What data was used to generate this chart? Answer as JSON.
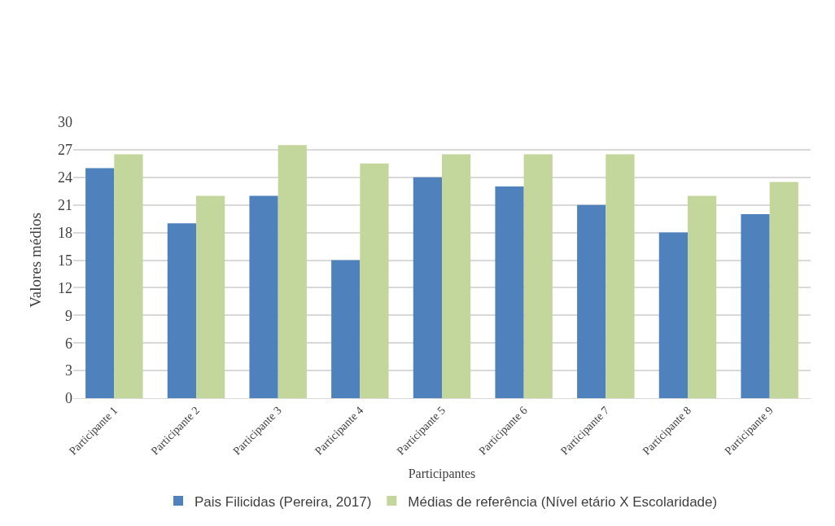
{
  "chart_data": {
    "type": "bar",
    "xlabel": "Participantes",
    "ylabel": "Valores médios",
    "categories": [
      "Participante 1",
      "Participante 2",
      "Participante 3",
      "Participante 4",
      "Participante 5",
      "Participante 6",
      "Participante 7",
      "Participante 8",
      "Participante 9"
    ],
    "series": [
      {
        "name": "Pais Filicidas (Pereira, 2017)",
        "color": "#4f81bd",
        "values": [
          25,
          19,
          22,
          15,
          24,
          23,
          21,
          18,
          20
        ]
      },
      {
        "name": "Médias de referência (Nível etário X Escolaridade)",
        "color": "#c3d69b",
        "values": [
          26.5,
          22,
          27.5,
          25.5,
          26.5,
          26.5,
          26.5,
          22,
          23.5
        ]
      }
    ],
    "ylim": [
      0,
      30
    ],
    "yticks": [
      0,
      3,
      6,
      9,
      12,
      15,
      18,
      21,
      24,
      27,
      30
    ],
    "grid": "y",
    "legend": "bottom"
  }
}
